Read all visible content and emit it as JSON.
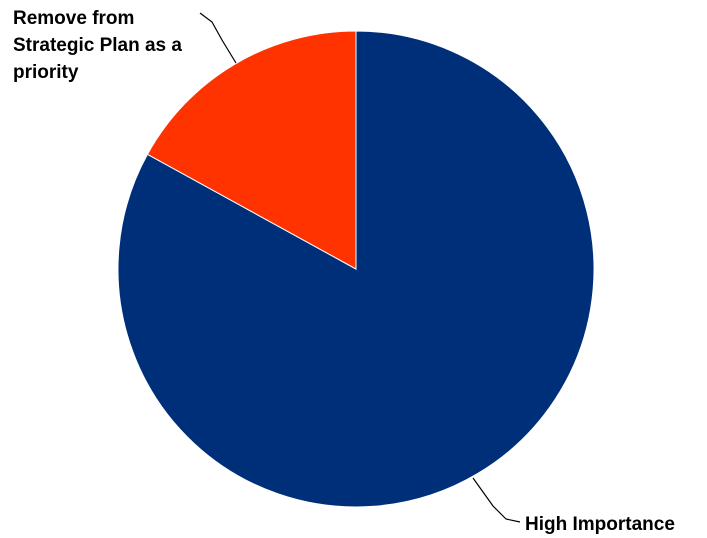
{
  "chart_data": {
    "type": "pie",
    "title": "",
    "start_angle_deg": 0,
    "direction": "clockwise",
    "slices": [
      {
        "label": "High Importance",
        "label_lines": [
          "High Importance"
        ],
        "value": 83,
        "color": "#002f7a"
      },
      {
        "label": "Remove from Strategic Plan as a priority",
        "label_lines": [
          "Remove from",
          "Strategic Plan as a",
          "priority"
        ],
        "value": 17,
        "color": "#ff3300"
      }
    ],
    "legend": "none",
    "labels_outside_with_leader_lines": true
  }
}
